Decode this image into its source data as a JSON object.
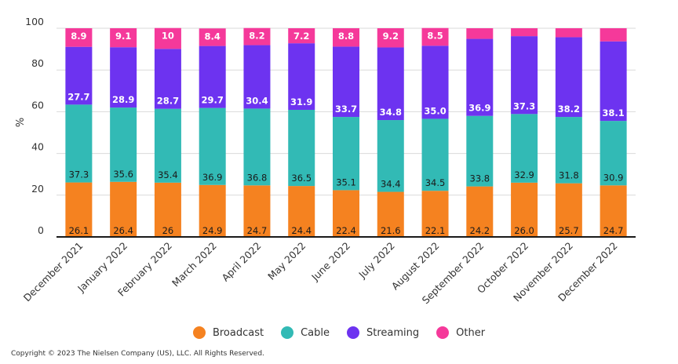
{
  "chart_data": {
    "type": "bar",
    "stacked": true,
    "ylabel": "%",
    "ylim": [
      0,
      100
    ],
    "yticks": [
      0,
      20,
      40,
      60,
      80,
      100
    ],
    "grid": true,
    "legend_position": "bottom",
    "categories": [
      "December 2021",
      "January 2022",
      "February 2022",
      "March 2022",
      "April 2022",
      "May 2022",
      "June 2022",
      "July 2022",
      "August 2022",
      "September 2022",
      "October 2022",
      "November 2022",
      "December 2022"
    ],
    "series": [
      {
        "name": "Broadcast",
        "color": "#f58220",
        "values": [
          26.1,
          26.4,
          26,
          24.9,
          24.7,
          24.4,
          22.4,
          21.6,
          22.1,
          24.2,
          26.0,
          25.7,
          24.7
        ],
        "labels": [
          "26.1",
          "26.4",
          "26",
          "24.9",
          "24.7",
          "24.4",
          "22.4",
          "21.6",
          "22.1",
          "24.2",
          "26.0",
          "25.7",
          "24.7"
        ]
      },
      {
        "name": "Cable",
        "color": "#32bab5",
        "values": [
          37.3,
          35.6,
          35.4,
          36.9,
          36.8,
          36.5,
          35.1,
          34.4,
          34.5,
          33.8,
          32.9,
          31.8,
          30.9
        ],
        "labels": [
          "37.3",
          "35.6",
          "35.4",
          "36.9",
          "36.8",
          "36.5",
          "35.1",
          "34.4",
          "34.5",
          "33.8",
          "32.9",
          "31.8",
          "30.9"
        ]
      },
      {
        "name": "Streaming",
        "color": "#6d33f0",
        "values": [
          27.7,
          28.9,
          28.7,
          29.7,
          30.4,
          31.9,
          33.7,
          34.8,
          35.0,
          36.9,
          37.3,
          38.2,
          38.1
        ],
        "labels": [
          "27.7",
          "28.9",
          "28.7",
          "29.7",
          "30.4",
          "31.9",
          "33.7",
          "34.8",
          "35.0",
          "36.9",
          "37.3",
          "38.2",
          "38.1"
        ]
      },
      {
        "name": "Other",
        "color": "#f5399a",
        "values": [
          8.9,
          9.1,
          10,
          8.4,
          8.2,
          7.2,
          8.8,
          9.2,
          8.5,
          5.1,
          3.8,
          4.3,
          6.3
        ],
        "labels": [
          "8.9",
          "9.1",
          "10",
          "8.4",
          "8.2",
          "7.2",
          "8.8",
          "9.2",
          "8.5",
          "",
          "",
          "",
          ""
        ]
      }
    ]
  },
  "footer": {
    "copyright": "Copyright © 2023 The Nielsen Company (US), LLC. All Rights Reserved."
  }
}
